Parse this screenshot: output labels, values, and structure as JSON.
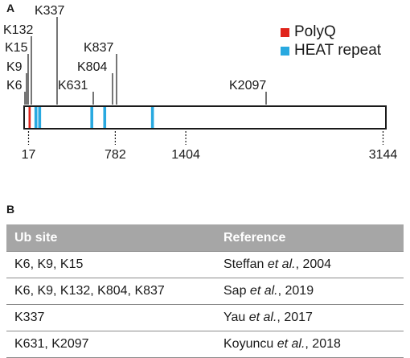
{
  "panel_a": {
    "letter": "A",
    "protein_length": 3144,
    "colors": {
      "polyq": "#e0241b",
      "heat": "#29a9e0",
      "stroke": "#1a1a1a"
    },
    "legend": [
      {
        "label": "PolyQ",
        "color_key": "polyq"
      },
      {
        "label": "HEAT repeat",
        "color_key": "heat"
      }
    ],
    "polyq_region": {
      "start": 17,
      "end": 36
    },
    "heat_repeats": [
      82,
      115,
      575,
      689,
      1110
    ],
    "ub_sites": [
      {
        "label": "K6",
        "position": 6
      },
      {
        "label": "K9",
        "position": 9
      },
      {
        "label": "K15",
        "position": 15
      },
      {
        "label": "K132",
        "position": 132
      },
      {
        "label": "K337",
        "position": 337
      },
      {
        "label": "K631",
        "position": 631
      },
      {
        "label": "K804",
        "position": 804
      },
      {
        "label": "K837",
        "position": 837
      },
      {
        "label": "K2097",
        "position": 2097
      }
    ],
    "axis_ticks": [
      17,
      782,
      1404,
      3144
    ]
  },
  "panel_b": {
    "letter": "B",
    "headers": [
      "Ub site",
      "Reference"
    ],
    "rows": [
      {
        "site": "K6, K9, K15",
        "author": "Steffan",
        "etal": "et al.",
        "year": ", 2004"
      },
      {
        "site": "K6, K9, K132, K804, K837",
        "author": "Sap",
        "etal": "et al.",
        "year": ", 2019"
      },
      {
        "site": "K337",
        "author": "Yau",
        "etal": "et al.",
        "year": ", 2017"
      },
      {
        "site": "K631, K2097",
        "author": "Koyuncu",
        "etal": "et al.",
        "year": ", 2018"
      }
    ]
  }
}
